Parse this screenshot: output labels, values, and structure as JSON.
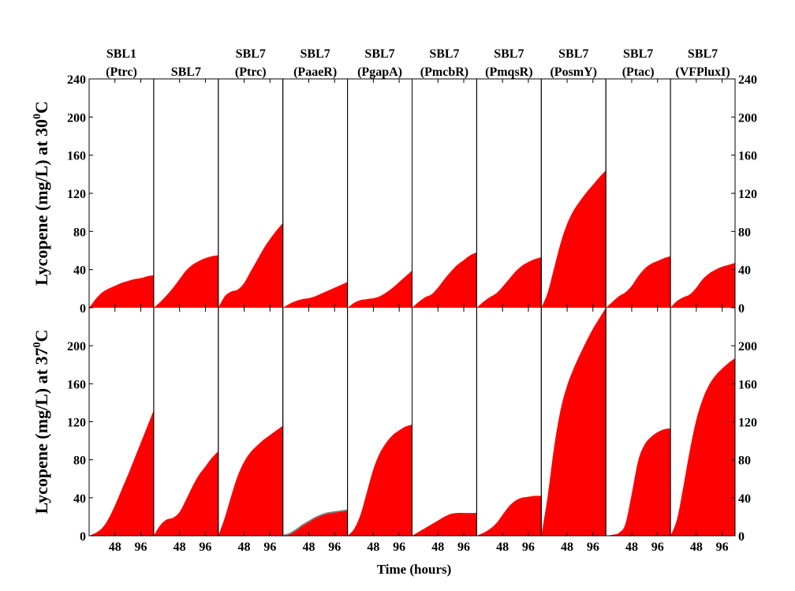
{
  "chart_data": {
    "type": "area",
    "fill_color": "#ff0000",
    "outline_color": "#808080",
    "x_ticks": [
      48,
      96
    ],
    "x_range": [
      0,
      120
    ],
    "xlabel": "Time (hours)",
    "rows": [
      {
        "ylabel_prefix": "Lycopene (mg/L) at 30",
        "ylabel_sup": "0",
        "ylabel_suffix": "C",
        "ylim": [
          0,
          240
        ],
        "y_ticks": [
          0,
          40,
          80,
          120,
          160,
          200,
          240
        ],
        "show_x_ticks": false
      },
      {
        "ylabel_prefix": "Lycopene (mg/L) at 37",
        "ylabel_sup": "0",
        "ylabel_suffix": "C",
        "ylim": [
          0,
          240
        ],
        "y_ticks": [
          0,
          40,
          80,
          120,
          160,
          200
        ],
        "show_x_ticks": true
      }
    ],
    "panels": [
      {
        "title_line1": "SBL1",
        "title_line2": "(Ptrc)",
        "series_30C": [
          [
            0,
            0
          ],
          [
            12,
            9
          ],
          [
            24,
            16
          ],
          [
            36,
            20
          ],
          [
            48,
            23
          ],
          [
            60,
            26
          ],
          [
            72,
            28
          ],
          [
            84,
            30
          ],
          [
            96,
            31
          ],
          [
            108,
            33
          ],
          [
            120,
            34
          ]
        ],
        "series_37C": [
          [
            0,
            0
          ],
          [
            12,
            3
          ],
          [
            24,
            8
          ],
          [
            36,
            18
          ],
          [
            48,
            32
          ],
          [
            60,
            48
          ],
          [
            72,
            64
          ],
          [
            84,
            81
          ],
          [
            96,
            98
          ],
          [
            108,
            115
          ],
          [
            120,
            132
          ]
        ],
        "outline_37C": false
      },
      {
        "title_line1": "",
        "title_line2": "SBL7",
        "series_30C": [
          [
            0,
            0
          ],
          [
            12,
            6
          ],
          [
            24,
            13
          ],
          [
            36,
            21
          ],
          [
            48,
            30
          ],
          [
            60,
            39
          ],
          [
            72,
            45
          ],
          [
            84,
            49
          ],
          [
            96,
            52
          ],
          [
            108,
            54
          ],
          [
            120,
            55
          ]
        ],
        "series_37C": [
          [
            0,
            0
          ],
          [
            12,
            11
          ],
          [
            24,
            17
          ],
          [
            36,
            19
          ],
          [
            48,
            25
          ],
          [
            60,
            38
          ],
          [
            72,
            52
          ],
          [
            84,
            64
          ],
          [
            96,
            73
          ],
          [
            108,
            82
          ],
          [
            120,
            89
          ]
        ],
        "outline_37C": false
      },
      {
        "title_line1": "SBL7",
        "title_line2": "(Ptrc)",
        "series_30C": [
          [
            0,
            0
          ],
          [
            12,
            12
          ],
          [
            24,
            17
          ],
          [
            36,
            19
          ],
          [
            48,
            26
          ],
          [
            60,
            38
          ],
          [
            72,
            50
          ],
          [
            84,
            62
          ],
          [
            96,
            72
          ],
          [
            108,
            81
          ],
          [
            120,
            89
          ]
        ],
        "series_37C": [
          [
            0,
            0
          ],
          [
            12,
            19
          ],
          [
            24,
            42
          ],
          [
            36,
            63
          ],
          [
            48,
            78
          ],
          [
            60,
            88
          ],
          [
            72,
            95
          ],
          [
            84,
            101
          ],
          [
            96,
            106
          ],
          [
            108,
            111
          ],
          [
            120,
            116
          ]
        ],
        "outline_37C": false
      },
      {
        "title_line1": "SBL7",
        "title_line2": "(PaaeR)",
        "series_30C": [
          [
            0,
            0
          ],
          [
            12,
            4
          ],
          [
            24,
            7
          ],
          [
            36,
            9
          ],
          [
            48,
            10
          ],
          [
            60,
            12
          ],
          [
            72,
            15
          ],
          [
            84,
            18
          ],
          [
            96,
            21
          ],
          [
            108,
            24
          ],
          [
            120,
            27
          ]
        ],
        "series_37C": [
          [
            0,
            0
          ],
          [
            12,
            2
          ],
          [
            24,
            6
          ],
          [
            36,
            11
          ],
          [
            48,
            15
          ],
          [
            60,
            19
          ],
          [
            72,
            22
          ],
          [
            84,
            24
          ],
          [
            96,
            25
          ],
          [
            108,
            26
          ],
          [
            120,
            27
          ]
        ],
        "outline_37C": true
      },
      {
        "title_line1": "SBL7",
        "title_line2": "(PgapA)",
        "series_30C": [
          [
            0,
            0
          ],
          [
            12,
            5
          ],
          [
            24,
            8
          ],
          [
            36,
            9
          ],
          [
            48,
            10
          ],
          [
            60,
            12
          ],
          [
            72,
            16
          ],
          [
            84,
            21
          ],
          [
            96,
            27
          ],
          [
            108,
            33
          ],
          [
            120,
            39
          ]
        ],
        "series_37C": [
          [
            0,
            0
          ],
          [
            12,
            7
          ],
          [
            24,
            22
          ],
          [
            36,
            46
          ],
          [
            48,
            70
          ],
          [
            60,
            87
          ],
          [
            72,
            98
          ],
          [
            84,
            106
          ],
          [
            96,
            111
          ],
          [
            108,
            115
          ],
          [
            120,
            117
          ]
        ],
        "outline_37C": false
      },
      {
        "title_line1": "SBL7",
        "title_line2": "(PmcbR)",
        "series_30C": [
          [
            0,
            0
          ],
          [
            12,
            6
          ],
          [
            24,
            11
          ],
          [
            36,
            14
          ],
          [
            48,
            21
          ],
          [
            60,
            30
          ],
          [
            72,
            38
          ],
          [
            84,
            45
          ],
          [
            96,
            50
          ],
          [
            108,
            55
          ],
          [
            120,
            58
          ]
        ],
        "series_37C": [
          [
            0,
            0
          ],
          [
            12,
            4
          ],
          [
            24,
            8
          ],
          [
            36,
            12
          ],
          [
            48,
            16
          ],
          [
            60,
            20
          ],
          [
            72,
            23
          ],
          [
            84,
            24
          ],
          [
            96,
            24
          ],
          [
            108,
            24
          ],
          [
            120,
            24
          ]
        ],
        "outline_37C": false
      },
      {
        "title_line1": "SBL7",
        "title_line2": "(PmqsR)",
        "series_30C": [
          [
            0,
            0
          ],
          [
            12,
            6
          ],
          [
            24,
            11
          ],
          [
            36,
            15
          ],
          [
            48,
            22
          ],
          [
            60,
            30
          ],
          [
            72,
            38
          ],
          [
            84,
            44
          ],
          [
            96,
            48
          ],
          [
            108,
            51
          ],
          [
            120,
            53
          ]
        ],
        "series_37C": [
          [
            0,
            0
          ],
          [
            12,
            3
          ],
          [
            24,
            7
          ],
          [
            36,
            13
          ],
          [
            48,
            22
          ],
          [
            60,
            31
          ],
          [
            72,
            37
          ],
          [
            84,
            40
          ],
          [
            96,
            41
          ],
          [
            108,
            42
          ],
          [
            120,
            42
          ]
        ],
        "outline_37C": false
      },
      {
        "title_line1": "SBL7",
        "title_line2": "(PosmY)",
        "series_30C": [
          [
            0,
            0
          ],
          [
            12,
            16
          ],
          [
            24,
            42
          ],
          [
            36,
            68
          ],
          [
            48,
            88
          ],
          [
            60,
            102
          ],
          [
            72,
            112
          ],
          [
            84,
            121
          ],
          [
            96,
            129
          ],
          [
            108,
            137
          ],
          [
            120,
            144
          ]
        ],
        "series_37C": [
          [
            0,
            0
          ],
          [
            12,
            42
          ],
          [
            24,
            94
          ],
          [
            36,
            133
          ],
          [
            48,
            158
          ],
          [
            60,
            176
          ],
          [
            72,
            191
          ],
          [
            84,
            205
          ],
          [
            96,
            218
          ],
          [
            108,
            229
          ],
          [
            120,
            240
          ]
        ],
        "outline_37C": false
      },
      {
        "title_line1": "SBL7",
        "title_line2": "(Ptac)",
        "series_30C": [
          [
            0,
            0
          ],
          [
            12,
            6
          ],
          [
            24,
            12
          ],
          [
            36,
            16
          ],
          [
            48,
            23
          ],
          [
            60,
            33
          ],
          [
            72,
            41
          ],
          [
            84,
            46
          ],
          [
            96,
            49
          ],
          [
            108,
            52
          ],
          [
            120,
            54
          ]
        ],
        "series_37C": [
          [
            0,
            0
          ],
          [
            12,
            1
          ],
          [
            24,
            3
          ],
          [
            36,
            12
          ],
          [
            48,
            44
          ],
          [
            60,
            79
          ],
          [
            72,
            96
          ],
          [
            84,
            104
          ],
          [
            96,
            109
          ],
          [
            108,
            112
          ],
          [
            120,
            113
          ]
        ],
        "outline_37C": false
      },
      {
        "title_line1": "SBL7",
        "title_line2": "(VFPluxI)",
        "series_30C": [
          [
            0,
            0
          ],
          [
            12,
            7
          ],
          [
            24,
            11
          ],
          [
            36,
            14
          ],
          [
            48,
            21
          ],
          [
            60,
            30
          ],
          [
            72,
            36
          ],
          [
            84,
            40
          ],
          [
            96,
            43
          ],
          [
            108,
            45
          ],
          [
            120,
            47
          ]
        ],
        "series_37C": [
          [
            0,
            0
          ],
          [
            12,
            17
          ],
          [
            24,
            52
          ],
          [
            36,
            90
          ],
          [
            48,
            122
          ],
          [
            60,
            144
          ],
          [
            72,
            159
          ],
          [
            84,
            169
          ],
          [
            96,
            176
          ],
          [
            108,
            182
          ],
          [
            120,
            187
          ]
        ],
        "outline_37C": false
      }
    ]
  }
}
